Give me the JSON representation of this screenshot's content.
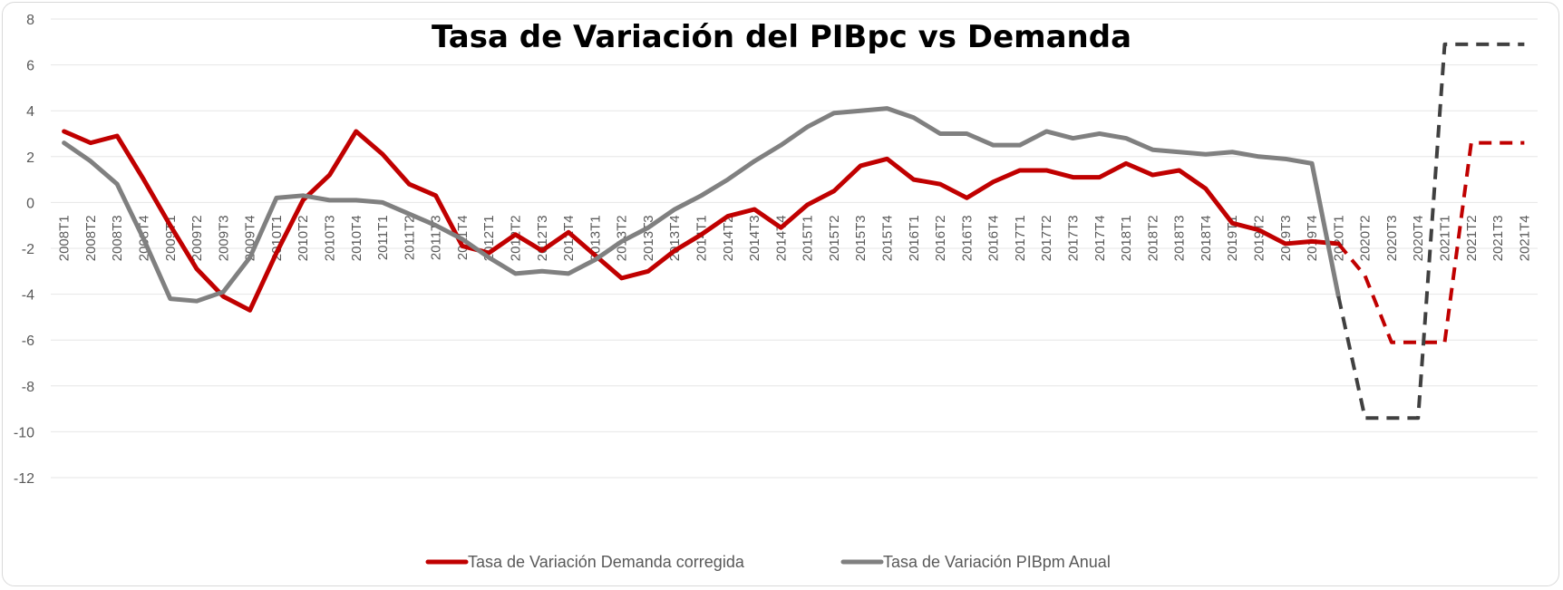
{
  "chart_data": {
    "type": "line",
    "title": "Tasa de Variación del PIBpc vs Demanda",
    "xlabel": "",
    "ylabel": "",
    "ylim": [
      -12,
      8
    ],
    "yticks": [
      "8",
      "6",
      "4",
      "2",
      "0",
      "-2",
      "-4",
      "-6",
      "-8",
      "-10",
      "-12"
    ],
    "grid": true,
    "legend_position": "bottom",
    "categories": [
      "2008T1",
      "2008T2",
      "2008T3",
      "2008T4",
      "2009T1",
      "2009T2",
      "2009T3",
      "2009T4",
      "2010T1",
      "2010T2",
      "2010T3",
      "2010T4",
      "2011T1",
      "2011T2",
      "2011T3",
      "2011T4",
      "2012T1",
      "2012T2",
      "2012T3",
      "2012T4",
      "2013T1",
      "2013T2",
      "2013T3",
      "2013T4",
      "2014T1",
      "2014T2",
      "2014T3",
      "2014T4",
      "2015T1",
      "2015T2",
      "2015T3",
      "2015T4",
      "2016T1",
      "2016T2",
      "2016T3",
      "2016T4",
      "2017T1",
      "2017T2",
      "2017T3",
      "2017T4",
      "2018T1",
      "2018T2",
      "2018T3",
      "2018T4",
      "2019T1",
      "2019T2",
      "2019T3",
      "2019T4",
      "2020T1",
      "2020T2",
      "2020T3",
      "2020T4",
      "2021T1",
      "2021T2",
      "2021T3",
      "2021T4"
    ],
    "series": [
      {
        "name": "Tasa de Variación Demanda corregida",
        "color": "#c00000",
        "values": [
          3.1,
          2.6,
          2.9,
          1.0,
          -1.0,
          -2.9,
          -4.1,
          -4.7,
          -2.2,
          0.1,
          1.2,
          3.1,
          2.1,
          0.8,
          0.3,
          -1.9,
          -2.2,
          -1.4,
          -2.1,
          -1.3,
          -2.3,
          -3.3,
          -3.0,
          -2.1,
          -1.4,
          -0.6,
          -0.3,
          -1.1,
          -0.1,
          0.5,
          1.6,
          1.9,
          1.0,
          0.8,
          0.2,
          0.9,
          1.4,
          1.4,
          1.1,
          1.1,
          1.7,
          1.2,
          1.4,
          0.6,
          -0.9,
          -1.2,
          -1.8,
          -1.7,
          -1.8,
          -3.2,
          -6.1,
          -6.1,
          -6.1,
          2.6,
          2.6,
          2.6
        ],
        "dashed_from_index": 48
      },
      {
        "name": "Tasa de Variación PIBpm Anual",
        "color": "#808080",
        "dashed_color": "#404040",
        "values": [
          2.6,
          1.8,
          0.8,
          -1.6,
          -4.2,
          -4.3,
          -3.9,
          -2.4,
          0.2,
          0.3,
          0.1,
          0.1,
          0.0,
          -0.5,
          -1.0,
          -1.6,
          -2.4,
          -3.1,
          -3.0,
          -3.1,
          -2.5,
          -1.7,
          -1.1,
          -0.3,
          0.3,
          1.0,
          1.8,
          2.5,
          3.3,
          3.9,
          4.0,
          4.1,
          3.7,
          3.0,
          3.0,
          2.5,
          2.5,
          3.1,
          2.8,
          3.0,
          2.8,
          2.3,
          2.2,
          2.1,
          2.2,
          2.0,
          1.9,
          1.7,
          -4.1,
          -9.4,
          -9.4,
          -9.4,
          6.9,
          6.9,
          6.9,
          6.9
        ],
        "dashed_from_index": 48
      }
    ]
  }
}
